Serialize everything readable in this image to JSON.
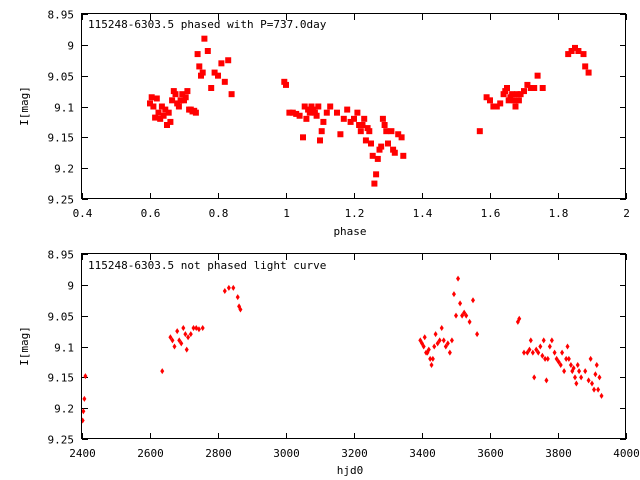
{
  "colors": {
    "points": "#ff0000",
    "axes": "#000000",
    "background": "#ffffff"
  },
  "chart_data": [
    {
      "type": "scatter",
      "title": "115248-6303.5 phased with P=737.0day",
      "xlabel": "phase",
      "ylabel": "I[mag]",
      "xlim": [
        0.4,
        2.0
      ],
      "ylim": [
        9.25,
        8.95
      ],
      "y_inverted": true,
      "grid": false,
      "legend": "none",
      "xticks": [
        "0.4",
        "0.6",
        "0.8",
        "1",
        "1.2",
        "1.4",
        "1.6",
        "1.8",
        "2"
      ],
      "xtick_values": [
        0.4,
        0.6,
        0.8,
        1.0,
        1.2,
        1.4,
        1.6,
        1.8,
        2.0
      ],
      "yticks": [
        "8.95",
        "9",
        "9.05",
        "9.1",
        "9.15",
        "9.2",
        "9.25"
      ],
      "ytick_values": [
        8.95,
        9.0,
        9.05,
        9.1,
        9.15,
        9.2,
        9.25
      ],
      "marker": "square",
      "points": [
        [
          0.6,
          9.095
        ],
        [
          0.605,
          9.085
        ],
        [
          0.61,
          9.1
        ],
        [
          0.615,
          9.118
        ],
        [
          0.62,
          9.087
        ],
        [
          0.625,
          9.11
        ],
        [
          0.63,
          9.12
        ],
        [
          0.635,
          9.1
        ],
        [
          0.64,
          9.115
        ],
        [
          0.645,
          9.105
        ],
        [
          0.65,
          9.13
        ],
        [
          0.655,
          9.11
        ],
        [
          0.66,
          9.125
        ],
        [
          0.665,
          9.09
        ],
        [
          0.67,
          9.075
        ],
        [
          0.675,
          9.08
        ],
        [
          0.68,
          9.095
        ],
        [
          0.685,
          9.1
        ],
        [
          0.69,
          9.09
        ],
        [
          0.695,
          9.08
        ],
        [
          0.7,
          9.09
        ],
        [
          0.705,
          9.085
        ],
        [
          0.71,
          9.075
        ],
        [
          0.715,
          9.105
        ],
        [
          0.72,
          9.105
        ],
        [
          0.725,
          9.108
        ],
        [
          0.73,
          9.107
        ],
        [
          0.735,
          9.11
        ],
        [
          0.74,
          9.015
        ],
        [
          0.745,
          9.035
        ],
        [
          0.75,
          9.05
        ],
        [
          0.755,
          9.045
        ],
        [
          0.76,
          8.99
        ],
        [
          0.77,
          9.01
        ],
        [
          0.78,
          9.07
        ],
        [
          0.79,
          9.045
        ],
        [
          0.8,
          9.05
        ],
        [
          0.81,
          9.03
        ],
        [
          0.82,
          9.06
        ],
        [
          0.83,
          9.025
        ],
        [
          0.84,
          9.08
        ],
        [
          0.995,
          9.06
        ],
        [
          1.0,
          9.065
        ],
        [
          1.01,
          9.11
        ],
        [
          1.02,
          9.11
        ],
        [
          1.03,
          9.112
        ],
        [
          1.04,
          9.115
        ],
        [
          1.05,
          9.15
        ],
        [
          1.055,
          9.1
        ],
        [
          1.06,
          9.12
        ],
        [
          1.065,
          9.105
        ],
        [
          1.07,
          9.11
        ],
        [
          1.075,
          9.1
        ],
        [
          1.08,
          9.105
        ],
        [
          1.085,
          9.11
        ],
        [
          1.09,
          9.115
        ],
        [
          1.095,
          9.1
        ],
        [
          1.1,
          9.155
        ],
        [
          1.105,
          9.14
        ],
        [
          1.11,
          9.125
        ],
        [
          1.12,
          9.11
        ],
        [
          1.13,
          9.1
        ],
        [
          1.15,
          9.11
        ],
        [
          1.16,
          9.145
        ],
        [
          1.17,
          9.12
        ],
        [
          1.18,
          9.105
        ],
        [
          1.19,
          9.125
        ],
        [
          1.2,
          9.12
        ],
        [
          1.21,
          9.11
        ],
        [
          1.215,
          9.13
        ],
        [
          1.22,
          9.14
        ],
        [
          1.225,
          9.13
        ],
        [
          1.23,
          9.12
        ],
        [
          1.235,
          9.155
        ],
        [
          1.24,
          9.135
        ],
        [
          1.245,
          9.14
        ],
        [
          1.25,
          9.16
        ],
        [
          1.255,
          9.18
        ],
        [
          1.26,
          9.225
        ],
        [
          1.265,
          9.21
        ],
        [
          1.27,
          9.185
        ],
        [
          1.275,
          9.17
        ],
        [
          1.28,
          9.165
        ],
        [
          1.285,
          9.12
        ],
        [
          1.29,
          9.13
        ],
        [
          1.295,
          9.14
        ],
        [
          1.3,
          9.16
        ],
        [
          1.31,
          9.14
        ],
        [
          1.315,
          9.17
        ],
        [
          1.32,
          9.175
        ],
        [
          1.33,
          9.145
        ],
        [
          1.34,
          9.15
        ],
        [
          1.345,
          9.18
        ],
        [
          1.57,
          9.14
        ],
        [
          1.59,
          9.085
        ],
        [
          1.6,
          9.09
        ],
        [
          1.61,
          9.1
        ],
        [
          1.62,
          9.1
        ],
        [
          1.63,
          9.095
        ],
        [
          1.64,
          9.08
        ],
        [
          1.645,
          9.075
        ],
        [
          1.65,
          9.07
        ],
        [
          1.655,
          9.09
        ],
        [
          1.66,
          9.085
        ],
        [
          1.665,
          9.08
        ],
        [
          1.67,
          9.09
        ],
        [
          1.675,
          9.1
        ],
        [
          1.68,
          9.08
        ],
        [
          1.685,
          9.09
        ],
        [
          1.69,
          9.08
        ],
        [
          1.7,
          9.075
        ],
        [
          1.71,
          9.065
        ],
        [
          1.72,
          9.07
        ],
        [
          1.73,
          9.07
        ],
        [
          1.74,
          9.05
        ],
        [
          1.755,
          9.07
        ],
        [
          1.83,
          9.015
        ],
        [
          1.84,
          9.01
        ],
        [
          1.85,
          9.005
        ],
        [
          1.86,
          9.01
        ],
        [
          1.875,
          9.015
        ],
        [
          1.88,
          9.035
        ],
        [
          1.89,
          9.045
        ]
      ]
    },
    {
      "type": "scatter",
      "title": "115248-6303.5 not phased light curve",
      "xlabel": "hjd0",
      "ylabel": "I[mag]",
      "xlim": [
        2400,
        4000
      ],
      "ylim": [
        9.25,
        8.95
      ],
      "y_inverted": true,
      "grid": false,
      "legend": "none",
      "xticks": [
        "2400",
        "2600",
        "2800",
        "3000",
        "3200",
        "3400",
        "3600",
        "3800",
        "4000"
      ],
      "xtick_values": [
        2400,
        2600,
        2800,
        3000,
        3200,
        3400,
        3600,
        3800,
        4000
      ],
      "yticks": [
        "8.95",
        "9",
        "9.05",
        "9.1",
        "9.15",
        "9.2",
        "9.25"
      ],
      "ytick_values": [
        8.95,
        9.0,
        9.05,
        9.1,
        9.15,
        9.2,
        9.25
      ],
      "marker": "diamond",
      "points": [
        [
          2402,
          9.22
        ],
        [
          2404,
          9.205
        ],
        [
          2407,
          9.185
        ],
        [
          2410,
          9.148
        ],
        [
          2636,
          9.14
        ],
        [
          2660,
          9.085
        ],
        [
          2666,
          9.09
        ],
        [
          2672,
          9.1
        ],
        [
          2680,
          9.075
        ],
        [
          2686,
          9.09
        ],
        [
          2692,
          9.095
        ],
        [
          2698,
          9.07
        ],
        [
          2704,
          9.08
        ],
        [
          2708,
          9.105
        ],
        [
          2712,
          9.085
        ],
        [
          2720,
          9.08
        ],
        [
          2728,
          9.07
        ],
        [
          2736,
          9.07
        ],
        [
          2744,
          9.072
        ],
        [
          2755,
          9.07
        ],
        [
          2820,
          9.01
        ],
        [
          2832,
          9.005
        ],
        [
          2845,
          9.005
        ],
        [
          2858,
          9.02
        ],
        [
          2862,
          9.035
        ],
        [
          2866,
          9.04
        ],
        [
          3395,
          9.09
        ],
        [
          3400,
          9.095
        ],
        [
          3405,
          9.1
        ],
        [
          3408,
          9.085
        ],
        [
          3412,
          9.11
        ],
        [
          3416,
          9.11
        ],
        [
          3420,
          9.105
        ],
        [
          3424,
          9.12
        ],
        [
          3428,
          9.13
        ],
        [
          3432,
          9.12
        ],
        [
          3436,
          9.1
        ],
        [
          3440,
          9.08
        ],
        [
          3446,
          9.095
        ],
        [
          3452,
          9.09
        ],
        [
          3458,
          9.07
        ],
        [
          3464,
          9.09
        ],
        [
          3470,
          9.1
        ],
        [
          3476,
          9.095
        ],
        [
          3482,
          9.11
        ],
        [
          3488,
          9.09
        ],
        [
          3494,
          9.015
        ],
        [
          3500,
          9.05
        ],
        [
          3506,
          8.99
        ],
        [
          3512,
          9.03
        ],
        [
          3518,
          9.05
        ],
        [
          3524,
          9.045
        ],
        [
          3530,
          9.05
        ],
        [
          3540,
          9.06
        ],
        [
          3550,
          9.025
        ],
        [
          3562,
          9.08
        ],
        [
          3682,
          9.06
        ],
        [
          3686,
          9.055
        ],
        [
          3700,
          9.11
        ],
        [
          3710,
          9.11
        ],
        [
          3716,
          9.105
        ],
        [
          3720,
          9.09
        ],
        [
          3726,
          9.11
        ],
        [
          3730,
          9.15
        ],
        [
          3736,
          9.105
        ],
        [
          3742,
          9.11
        ],
        [
          3748,
          9.1
        ],
        [
          3754,
          9.115
        ],
        [
          3758,
          9.09
        ],
        [
          3762,
          9.12
        ],
        [
          3766,
          9.155
        ],
        [
          3770,
          9.12
        ],
        [
          3776,
          9.1
        ],
        [
          3782,
          9.09
        ],
        [
          3790,
          9.11
        ],
        [
          3796,
          9.12
        ],
        [
          3802,
          9.125
        ],
        [
          3808,
          9.13
        ],
        [
          3812,
          9.11
        ],
        [
          3818,
          9.14
        ],
        [
          3824,
          9.12
        ],
        [
          3828,
          9.1
        ],
        [
          3832,
          9.12
        ],
        [
          3838,
          9.13
        ],
        [
          3842,
          9.14
        ],
        [
          3846,
          9.135
        ],
        [
          3850,
          9.15
        ],
        [
          3854,
          9.16
        ],
        [
          3858,
          9.13
        ],
        [
          3862,
          9.14
        ],
        [
          3868,
          9.15
        ],
        [
          3880,
          9.14
        ],
        [
          3890,
          9.155
        ],
        [
          3896,
          9.12
        ],
        [
          3900,
          9.16
        ],
        [
          3906,
          9.17
        ],
        [
          3910,
          9.145
        ],
        [
          3914,
          9.13
        ],
        [
          3918,
          9.17
        ],
        [
          3922,
          9.15
        ],
        [
          3928,
          9.18
        ]
      ]
    }
  ]
}
